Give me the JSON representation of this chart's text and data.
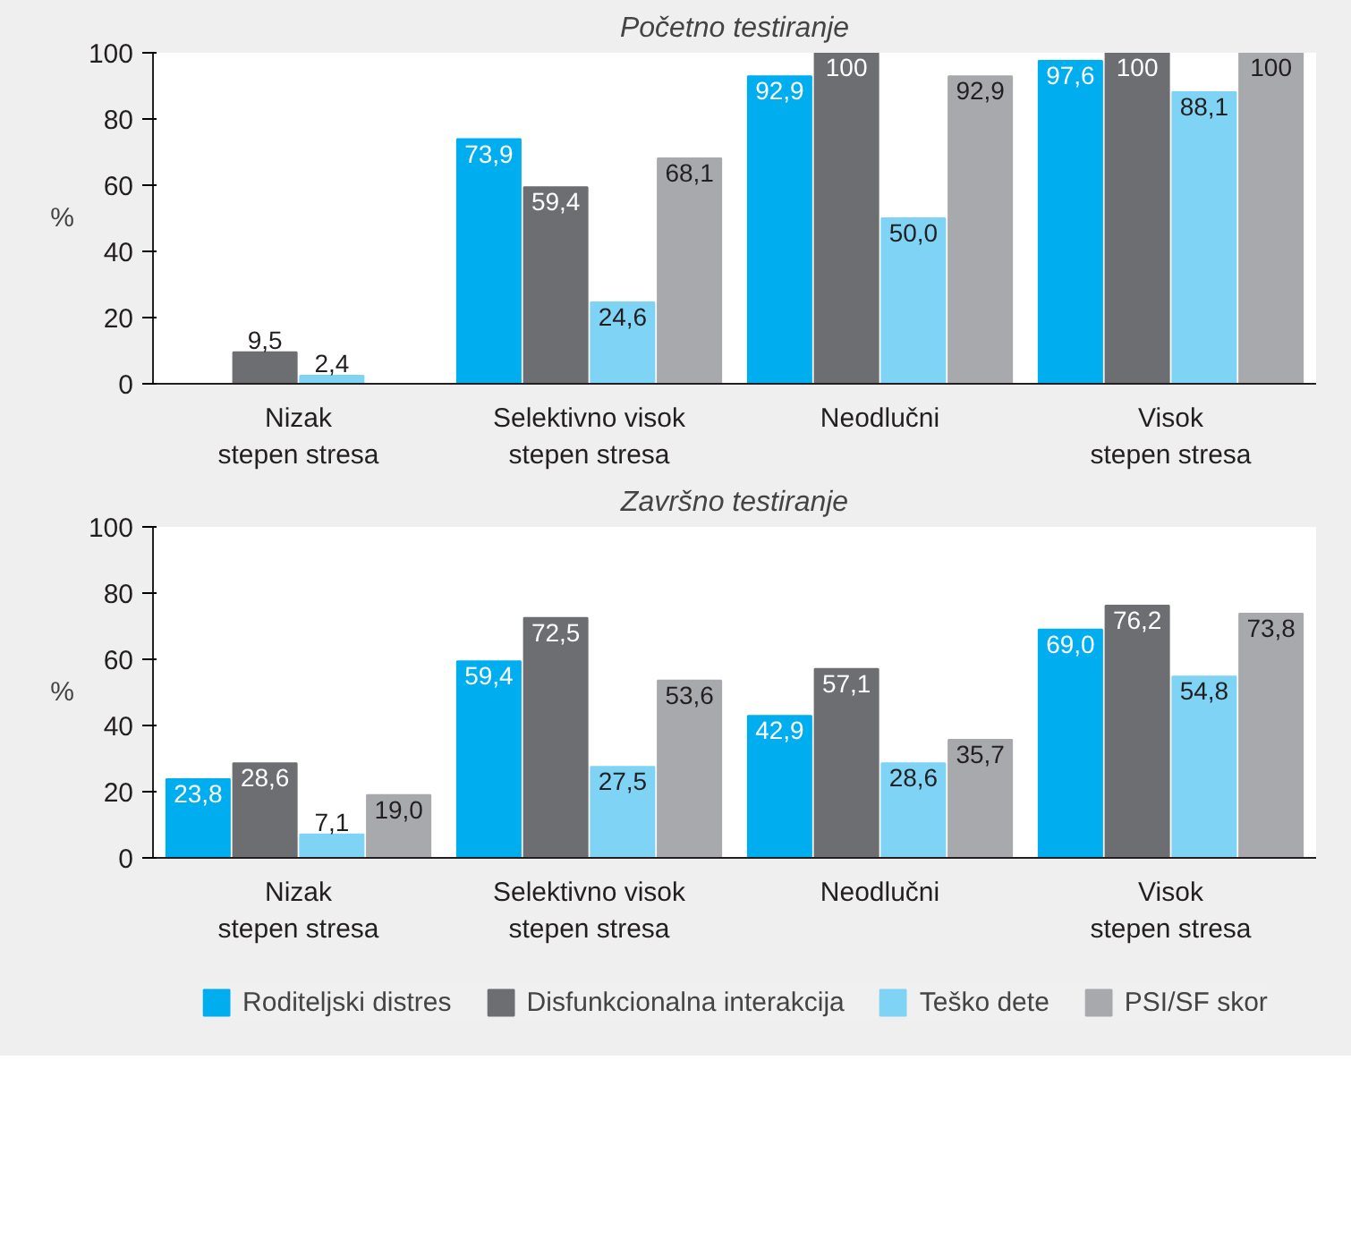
{
  "chart_data": [
    {
      "type": "bar",
      "title": "Početno testiranje",
      "ylabel": "%",
      "categories": [
        "Nizak stepen stresa",
        "Selektivno visok stepen stresa",
        "Neodlučni",
        "Visok stepen stresa"
      ],
      "series": [
        {
          "color": "#00aeef",
          "values": [
            0,
            73.9,
            92.9,
            97.6
          ],
          "value_labels": [
            null,
            "73,9",
            "92,9",
            "97,6"
          ]
        },
        {
          "color": "#6d6e71",
          "values": [
            9.5,
            59.4,
            100,
            100
          ],
          "value_labels": [
            "9,5",
            "59,4",
            "100",
            "100"
          ]
        },
        {
          "color": "#7fd3f5",
          "values": [
            2.4,
            24.6,
            50.0,
            88.1
          ],
          "value_labels": [
            "2,4",
            "24,6",
            "50,0",
            "88,1"
          ]
        },
        {
          "color": "#a7a9ac",
          "values": [
            0,
            68.1,
            92.9,
            100
          ],
          "value_labels": [
            null,
            "68,1",
            "92,9",
            "100"
          ]
        }
      ],
      "ylim": [
        0,
        100
      ],
      "yticks": [
        0,
        20,
        40,
        60,
        80,
        100
      ],
      "grid": false,
      "legend": false
    },
    {
      "type": "bar",
      "title": "Završno testiranje",
      "ylabel": "%",
      "categories": [
        "Nizak stepen stresa",
        "Selektivno visok stepen stresa",
        "Neodlučni",
        "Visok stepen stresa"
      ],
      "series": [
        {
          "name": "Roditeljski distres",
          "color": "#00aeef",
          "values": [
            23.8,
            59.4,
            42.9,
            69.0
          ],
          "value_labels": [
            "23,8",
            "59,4",
            "42,9",
            "69,0"
          ]
        },
        {
          "name": "Disfunkcionalna interakcija",
          "color": "#6d6e71",
          "values": [
            28.6,
            72.5,
            57.1,
            76.2
          ],
          "value_labels": [
            "28,6",
            "72,5",
            "57,1",
            "76,2"
          ]
        },
        {
          "name": "Teško dete",
          "color": "#7fd3f5",
          "values": [
            7.1,
            27.5,
            28.6,
            54.8
          ],
          "value_labels": [
            "7,1",
            "27,5",
            "28,6",
            "54,8"
          ]
        },
        {
          "name": "PSI/SF skor",
          "color": "#a7a9ac",
          "values": [
            19.0,
            53.6,
            35.7,
            73.8
          ],
          "value_labels": [
            "19,0",
            "53,6",
            "35,7",
            "73,8"
          ]
        }
      ],
      "ylim": [
        0,
        100
      ],
      "yticks": [
        0,
        20,
        40,
        60,
        80,
        100
      ],
      "grid": false,
      "legend": "bottom"
    }
  ]
}
